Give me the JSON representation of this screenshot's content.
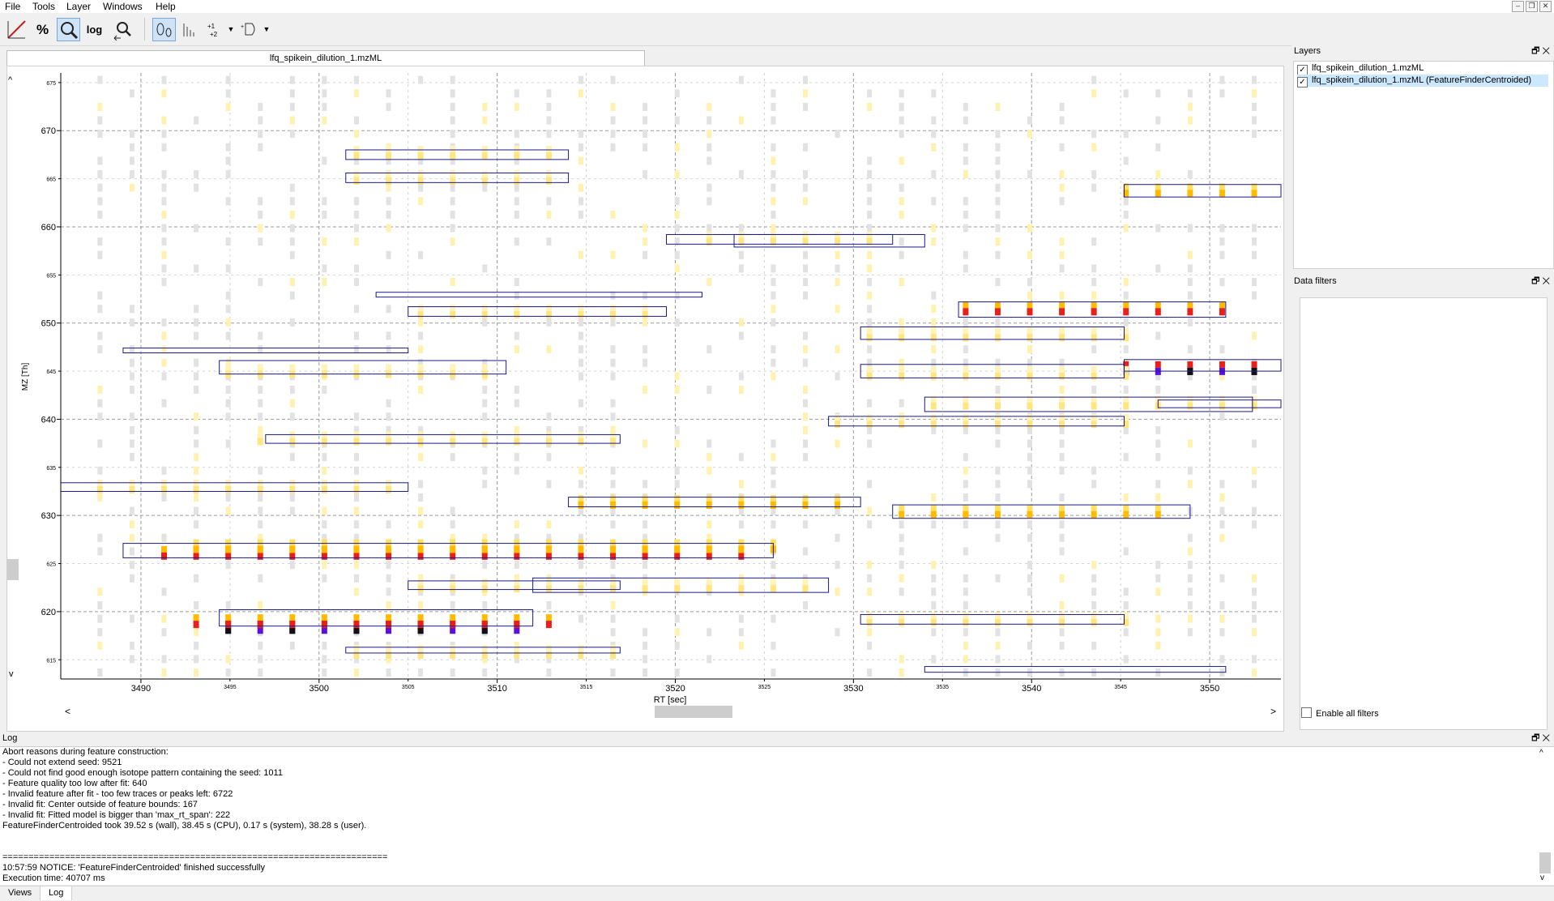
{
  "menu": [
    "File",
    "Tools",
    "Layer",
    "Windows",
    "Help"
  ],
  "window_controls": [
    "–",
    "❐",
    "✕"
  ],
  "toolbar": {
    "log_label": "log",
    "percent_label": "%"
  },
  "view": {
    "tab_title": "lfq_spikein_dilution_1.mzML"
  },
  "chart_data": {
    "type": "heatmap",
    "xlabel": "RT [sec]",
    "ylabel": "MZ [Th]",
    "xlim": [
      3485.5,
      3554
    ],
    "ylim": [
      613,
      676
    ],
    "x_ticks_major": [
      3490,
      3500,
      3510,
      3520,
      3530,
      3540,
      3550
    ],
    "x_ticks_minor": [
      3495,
      3505,
      3515,
      3525,
      3535,
      3545
    ],
    "y_ticks_major": [
      620,
      630,
      640,
      650,
      660,
      670
    ],
    "y_ticks_minor": [
      615,
      625,
      635,
      645,
      655,
      665,
      675
    ],
    "scan_rt": [
      3487.7,
      3489.5,
      3491.3,
      3493.1,
      3494.9,
      3496.7,
      3498.5,
      3500.3,
      3502.1,
      3503.9,
      3505.7,
      3507.5,
      3509.3,
      3511.1,
      3512.9,
      3514.7,
      3516.5,
      3518.3,
      3520.1,
      3521.9,
      3523.7,
      3525.5,
      3527.3,
      3529.1,
      3530.9,
      3532.7,
      3534.5,
      3536.3,
      3538.1,
      3539.9,
      3541.7,
      3543.5,
      3545.3,
      3547.1,
      3548.9,
      3550.7,
      3552.5
    ],
    "features": [
      {
        "rt": [
          3501.5,
          3514.0
        ],
        "mz": [
          667.0,
          668.0
        ]
      },
      {
        "rt": [
          3501.5,
          3514.0
        ],
        "mz": [
          664.6,
          665.6
        ]
      },
      {
        "rt": [
          3545.2,
          3554.0
        ],
        "mz": [
          663.1,
          664.4
        ]
      },
      {
        "rt": [
          3519.5,
          3532.2
        ],
        "mz": [
          658.2,
          659.2
        ]
      },
      {
        "rt": [
          3523.3,
          3534.0
        ],
        "mz": [
          657.9,
          659.2
        ]
      },
      {
        "rt": [
          3503.2,
          3521.5
        ],
        "mz": [
          652.7,
          653.2
        ]
      },
      {
        "rt": [
          3505.0,
          3519.5
        ],
        "mz": [
          650.7,
          651.7
        ]
      },
      {
        "rt": [
          3535.9,
          3550.9
        ],
        "mz": [
          650.6,
          652.2
        ]
      },
      {
        "rt": [
          3530.4,
          3545.2
        ],
        "mz": [
          648.3,
          649.6
        ]
      },
      {
        "rt": [
          3489.0,
          3505.0
        ],
        "mz": [
          646.9,
          647.4
        ]
      },
      {
        "rt": [
          3494.4,
          3510.5
        ],
        "mz": [
          644.7,
          646.1
        ]
      },
      {
        "rt": [
          3530.4,
          3545.2
        ],
        "mz": [
          644.3,
          645.7
        ]
      },
      {
        "rt": [
          3545.2,
          3554.0
        ],
        "mz": [
          645.0,
          646.2
        ]
      },
      {
        "rt": [
          3534.0,
          3552.4
        ],
        "mz": [
          640.8,
          642.3
        ]
      },
      {
        "rt": [
          3547.1,
          3554.0
        ],
        "mz": [
          641.2,
          642.0
        ]
      },
      {
        "rt": [
          3528.6,
          3545.2
        ],
        "mz": [
          639.3,
          640.3
        ]
      },
      {
        "rt": [
          3497.0,
          3516.9
        ],
        "mz": [
          637.5,
          638.4
        ]
      },
      {
        "rt": [
          3485.5,
          3505.0
        ],
        "mz": [
          632.5,
          633.4
        ]
      },
      {
        "rt": [
          3514.0,
          3530.4
        ],
        "mz": [
          630.9,
          631.9
        ]
      },
      {
        "rt": [
          3532.2,
          3548.9
        ],
        "mz": [
          629.7,
          631.1
        ]
      },
      {
        "rt": [
          3489.0,
          3525.5
        ],
        "mz": [
          625.6,
          627.1
        ]
      },
      {
        "rt": [
          3505.0,
          3516.9
        ],
        "mz": [
          622.3,
          623.2
        ]
      },
      {
        "rt": [
          3512.0,
          3528.6
        ],
        "mz": [
          622.0,
          623.5
        ]
      },
      {
        "rt": [
          3494.4,
          3512.0
        ],
        "mz": [
          618.5,
          620.2
        ]
      },
      {
        "rt": [
          3530.4,
          3545.2
        ],
        "mz": [
          618.7,
          619.7
        ]
      },
      {
        "rt": [
          3501.5,
          3516.9
        ],
        "mz": [
          615.7,
          616.3
        ]
      },
      {
        "rt": [
          3534.0,
          3550.9
        ],
        "mz": [
          613.7,
          614.3
        ]
      }
    ],
    "peak_traces": [
      {
        "mz": 625.9,
        "rt": [
          3490.6,
          3524.8
        ],
        "intensity": "high"
      },
      {
        "mz": 626.6,
        "rt": [
          3492.4,
          3526.6
        ],
        "intensity": "medium"
      },
      {
        "mz": 618.2,
        "rt": [
          3494.4,
          3512.1
        ],
        "intensity": "very-high"
      },
      {
        "mz": 618.8,
        "rt": [
          3492.4,
          3513.0
        ],
        "intensity": "high"
      },
      {
        "mz": 645.1,
        "rt": [
          3545.3,
          3552.5
        ],
        "intensity": "very-high"
      },
      {
        "mz": 651.3,
        "rt": [
          3535.9,
          3550.5
        ],
        "intensity": "high"
      },
      {
        "mz": 630.2,
        "rt": [
          3532.2,
          3548.0
        ],
        "intensity": "medium"
      },
      {
        "mz": 663.6,
        "rt": [
          3545.2,
          3553.4
        ],
        "intensity": "medium"
      },
      {
        "mz": 658.6,
        "rt": [
          3521.3,
          3532.0
        ],
        "intensity": "low"
      },
      {
        "mz": 651.0,
        "rt": [
          3505.0,
          3519.0
        ],
        "intensity": "low"
      },
      {
        "mz": 648.6,
        "rt": [
          3530.4,
          3545.0
        ],
        "intensity": "low"
      },
      {
        "mz": 644.8,
        "rt": [
          3494.4,
          3510.0
        ],
        "intensity": "low"
      },
      {
        "mz": 644.6,
        "rt": [
          3530.4,
          3545.0
        ],
        "intensity": "low"
      },
      {
        "mz": 639.6,
        "rt": [
          3528.6,
          3545.0
        ],
        "intensity": "low"
      },
      {
        "mz": 631.2,
        "rt": [
          3514.0,
          3530.0
        ],
        "intensity": "medium"
      },
      {
        "mz": 622.5,
        "rt": [
          3505.0,
          3528.5
        ],
        "intensity": "low"
      },
      {
        "mz": 619.0,
        "rt": [
          3530.4,
          3545.0
        ],
        "intensity": "low"
      },
      {
        "mz": 615.6,
        "rt": [
          3501.5,
          3516.9
        ],
        "intensity": "low"
      },
      {
        "mz": 664.9,
        "rt": [
          3501.5,
          3514.0
        ],
        "intensity": "low"
      },
      {
        "mz": 667.5,
        "rt": [
          3501.5,
          3514.0
        ],
        "intensity": "low"
      },
      {
        "mz": 632.8,
        "rt": [
          3485.5,
          3505.0
        ],
        "intensity": "low"
      },
      {
        "mz": 637.8,
        "rt": [
          3497.0,
          3516.9
        ],
        "intensity": "low"
      },
      {
        "mz": 641.5,
        "rt": [
          3534.0,
          3552.4
        ],
        "intensity": "low"
      }
    ],
    "colors": {
      "low": "#ffe680",
      "medium": "#ffbb00",
      "high": "#e8201c",
      "very-high": "#5a10e0",
      "feature_box": "#1a1a8c",
      "background_peak": "#e2e2e2",
      "grid": "#9a9a9a"
    }
  },
  "layers": {
    "title": "Layers",
    "items": [
      {
        "label": "lfq_spikein_dilution_1.mzML",
        "checked": true
      },
      {
        "label": "lfq_spikein_dilution_1.mzML (FeatureFinderCentroided)",
        "checked": true
      }
    ]
  },
  "filters": {
    "title": "Data filters",
    "enable_label": "Enable all filters"
  },
  "log": {
    "title": "Log",
    "lines": [
      "Abort reasons during feature construction:",
      "- Could not extend seed: 9521",
      "- Could not find good enough isotope pattern containing the seed: 1011",
      "- Feature quality too low after fit: 640",
      "- Invalid feature after fit - too few traces or peaks left: 6722",
      "- Invalid fit: Center outside of feature bounds: 167",
      "- Invalid fit: Fitted model is bigger than 'max_rt_span': 222",
      "FeatureFinderCentroided took 39.52 s (wall), 38.45 s (CPU), 0.17 s (system), 38.28 s (user).",
      "",
      "",
      "==========================================================================",
      "10:57:59 NOTICE: 'FeatureFinderCentroided' finished successfully",
      "Execution time: 40707 ms"
    ]
  },
  "bottom_tabs": [
    "Views",
    "Log"
  ],
  "dock_buttons": [
    "🗗",
    "✕"
  ],
  "scroll_arrows": {
    "up": "^",
    "down": "v",
    "left": "<",
    "right": ">"
  }
}
